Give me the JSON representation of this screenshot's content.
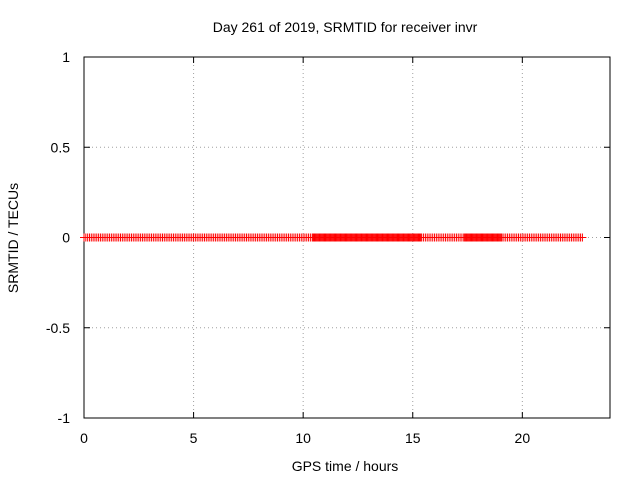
{
  "chart_data": {
    "type": "scatter",
    "title": "Day 261 of 2019, SRMTID for receiver invr",
    "xlabel": "GPS time / hours",
    "ylabel": "SRMTID / TECUs",
    "xlim": [
      0,
      24
    ],
    "ylim": [
      -1,
      1
    ],
    "grid": true,
    "marker": "+",
    "marker_color": "#ff0000",
    "x_ticks": [
      0,
      5,
      10,
      15,
      20
    ],
    "x_tick_labels": [
      "0",
      "5",
      "10",
      "15",
      "20"
    ],
    "y_ticks": [
      -1,
      -0.5,
      0,
      0.5,
      1
    ],
    "y_tick_labels": [
      "-1",
      "-0.5",
      "0",
      "0.5",
      "1"
    ],
    "series": [
      {
        "name": "SRMTID",
        "sample_interval_hours": 0.0833,
        "x_start": 0.0,
        "x_end": 22.75,
        "y_constant": 0,
        "dense_intervals": [
          [
            10.4,
            15.4
          ],
          [
            17.3,
            19.0
          ]
        ]
      }
    ]
  }
}
